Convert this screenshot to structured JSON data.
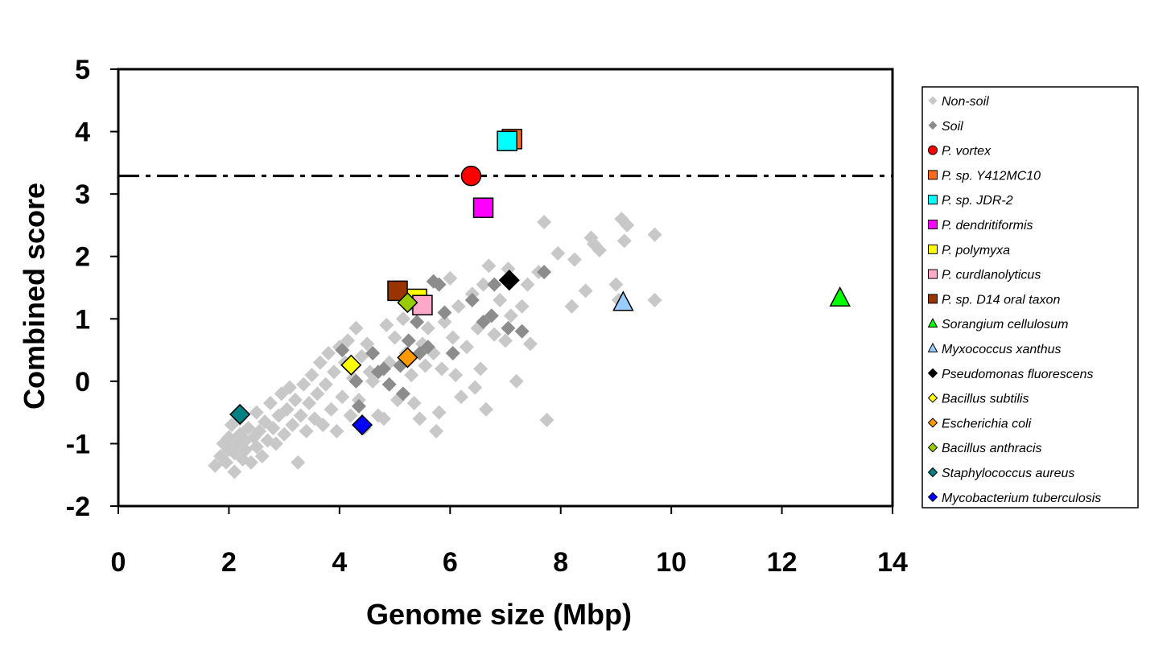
{
  "chart_data": {
    "type": "scatter",
    "title": "",
    "xlabel": "Genome size (Mbp)",
    "ylabel": "Combined score",
    "xlim": [
      0,
      14
    ],
    "ylim": [
      -2,
      5
    ],
    "xticks": [
      "0",
      "2",
      "4",
      "6",
      "8",
      "10",
      "12",
      "14"
    ],
    "yticks": [
      "-2",
      "-1",
      "0",
      "1",
      "2",
      "3",
      "4",
      "5"
    ],
    "grid": false,
    "legend_position": "right",
    "threshold": {
      "y": 3.29,
      "style": "dash-dot"
    },
    "series": [
      {
        "name": "Non-soil",
        "marker": "diamond",
        "color": "#c8c8c8",
        "points": [
          [
            1.75,
            -1.35
          ],
          [
            1.85,
            -1.2
          ],
          [
            1.9,
            -1.0
          ],
          [
            1.95,
            -1.3
          ],
          [
            2.0,
            -0.9
          ],
          [
            2.0,
            -1.1
          ],
          [
            2.05,
            -0.7
          ],
          [
            2.1,
            -1.45
          ],
          [
            2.1,
            -1.15
          ],
          [
            2.15,
            -1.0
          ],
          [
            2.2,
            -0.6
          ],
          [
            2.2,
            -0.85
          ],
          [
            2.25,
            -1.25
          ],
          [
            2.3,
            -0.95
          ],
          [
            2.3,
            -1.1
          ],
          [
            2.35,
            -0.75
          ],
          [
            2.4,
            -1.3
          ],
          [
            2.45,
            -0.9
          ],
          [
            2.5,
            -0.5
          ],
          [
            2.5,
            -1.05
          ],
          [
            2.55,
            -0.8
          ],
          [
            2.6,
            -1.2
          ],
          [
            2.65,
            -0.65
          ],
          [
            2.7,
            -0.95
          ],
          [
            2.75,
            -0.35
          ],
          [
            2.8,
            -0.75
          ],
          [
            2.85,
            -1.0
          ],
          [
            2.9,
            -0.55
          ],
          [
            2.95,
            -0.2
          ],
          [
            3.0,
            -0.85
          ],
          [
            3.05,
            -0.45
          ],
          [
            3.1,
            -0.1
          ],
          [
            3.15,
            -0.7
          ],
          [
            3.2,
            -0.3
          ],
          [
            3.25,
            -1.3
          ],
          [
            3.3,
            -0.55
          ],
          [
            3.35,
            -0.05
          ],
          [
            3.4,
            -0.8
          ],
          [
            3.45,
            -0.35
          ],
          [
            3.5,
            0.1
          ],
          [
            3.55,
            -0.6
          ],
          [
            3.6,
            -0.2
          ],
          [
            3.65,
            0.3
          ],
          [
            3.7,
            -0.7
          ],
          [
            3.75,
            -0.05
          ],
          [
            3.8,
            0.45
          ],
          [
            3.85,
            -0.45
          ],
          [
            3.9,
            0.15
          ],
          [
            3.95,
            -0.8
          ],
          [
            4.0,
            0.55
          ],
          [
            4.05,
            -0.25
          ],
          [
            4.1,
            0.3
          ],
          [
            4.15,
            0.65
          ],
          [
            4.2,
            -0.55
          ],
          [
            4.25,
            0.05
          ],
          [
            4.3,
            0.85
          ],
          [
            4.35,
            -0.3
          ],
          [
            4.4,
            0.4
          ],
          [
            4.45,
            -0.75
          ],
          [
            4.5,
            0.6
          ],
          [
            4.55,
            0.15
          ],
          [
            4.6,
            0.0
          ],
          [
            4.7,
            -0.55
          ],
          [
            4.8,
            -0.6
          ],
          [
            4.85,
            0.9
          ],
          [
            4.9,
            0.3
          ],
          [
            5.0,
            0.7
          ],
          [
            5.05,
            -0.3
          ],
          [
            5.15,
            1.0
          ],
          [
            5.2,
            0.45
          ],
          [
            5.3,
            0.1
          ],
          [
            5.35,
            -0.35
          ],
          [
            5.4,
            1.15
          ],
          [
            5.45,
            -0.6
          ],
          [
            5.5,
            0.6
          ],
          [
            5.55,
            0.25
          ],
          [
            5.6,
            0.85
          ],
          [
            5.7,
            0.45
          ],
          [
            5.75,
            -0.8
          ],
          [
            5.8,
            -0.5
          ],
          [
            5.85,
            0.2
          ],
          [
            5.9,
            0.95
          ],
          [
            6.0,
            1.65
          ],
          [
            6.05,
            0.7
          ],
          [
            6.1,
            0.1
          ],
          [
            6.15,
            1.2
          ],
          [
            6.2,
            -0.25
          ],
          [
            6.3,
            0.55
          ],
          [
            6.4,
            1.4
          ],
          [
            6.45,
            -0.1
          ],
          [
            6.5,
            0.85
          ],
          [
            6.55,
            0.2
          ],
          [
            6.6,
            1.55
          ],
          [
            6.65,
            -0.45
          ],
          [
            6.7,
            1.85
          ],
          [
            6.8,
            0.75
          ],
          [
            6.9,
            1.3
          ],
          [
            7.0,
            0.65
          ],
          [
            7.05,
            1.8
          ],
          [
            7.1,
            1.05
          ],
          [
            7.2,
            0.0
          ],
          [
            7.3,
            1.2
          ],
          [
            7.4,
            1.55
          ],
          [
            7.45,
            0.6
          ],
          [
            7.6,
            1.75
          ],
          [
            7.7,
            2.55
          ],
          [
            7.75,
            -0.62
          ],
          [
            7.95,
            2.05
          ],
          [
            8.2,
            1.2
          ],
          [
            8.25,
            1.95
          ],
          [
            8.45,
            1.45
          ],
          [
            8.55,
            2.3
          ],
          [
            8.6,
            2.2
          ],
          [
            8.7,
            2.1
          ],
          [
            9.0,
            1.55
          ],
          [
            9.05,
            1.3
          ],
          [
            9.1,
            2.6
          ],
          [
            9.15,
            2.25
          ],
          [
            9.2,
            2.5
          ],
          [
            9.7,
            2.35
          ],
          [
            9.7,
            1.3
          ]
        ]
      },
      {
        "name": "Soil",
        "marker": "diamond",
        "color": "#8c8c8c",
        "points": [
          [
            4.05,
            0.5
          ],
          [
            4.3,
            0.0
          ],
          [
            4.35,
            -0.4
          ],
          [
            4.6,
            0.45
          ],
          [
            4.7,
            0.15
          ],
          [
            4.8,
            0.2
          ],
          [
            4.9,
            -0.05
          ],
          [
            5.0,
            1.45
          ],
          [
            5.1,
            0.25
          ],
          [
            5.15,
            -0.2
          ],
          [
            5.25,
            0.65
          ],
          [
            5.4,
            0.95
          ],
          [
            5.45,
            0.45
          ],
          [
            5.5,
            1.2
          ],
          [
            5.6,
            0.55
          ],
          [
            5.7,
            1.6
          ],
          [
            5.8,
            1.55
          ],
          [
            5.9,
            1.1
          ],
          [
            6.05,
            0.45
          ],
          [
            6.4,
            1.3
          ],
          [
            6.6,
            0.95
          ],
          [
            6.75,
            1.05
          ],
          [
            6.8,
            1.55
          ],
          [
            7.05,
            0.85
          ],
          [
            7.3,
            0.8
          ],
          [
            7.7,
            1.75
          ]
        ]
      },
      {
        "name": "P. vortex",
        "marker": "circle",
        "color": "#ff0000",
        "points": [
          [
            6.38,
            3.29
          ]
        ]
      },
      {
        "name": "P. sp. Y412MC10",
        "marker": "square",
        "color": "#ff6a1a",
        "points": [
          [
            7.12,
            3.88
          ]
        ]
      },
      {
        "name": "P. sp. JDR-2",
        "marker": "square",
        "color": "#00ffff",
        "points": [
          [
            7.03,
            3.85
          ]
        ]
      },
      {
        "name": "P. dendritiformis",
        "marker": "square",
        "color": "#ff00ff",
        "points": [
          [
            6.6,
            2.78
          ]
        ]
      },
      {
        "name": "P. polymyxa",
        "marker": "square",
        "color": "#ffff00",
        "points": [
          [
            5.4,
            1.32
          ]
        ]
      },
      {
        "name": "P. curdlanolyticus",
        "marker": "square",
        "color": "#ffa8c8",
        "points": [
          [
            5.5,
            1.22
          ]
        ]
      },
      {
        "name": "P. sp. D14 oral taxon",
        "marker": "square",
        "color": "#993300",
        "points": [
          [
            5.05,
            1.45
          ]
        ]
      },
      {
        "name": "Sorangium cellulosum",
        "marker": "triangle",
        "color": "#00ff00",
        "points": [
          [
            13.05,
            1.33
          ]
        ]
      },
      {
        "name": "Myxococcus xanthus",
        "marker": "triangle",
        "color": "#99ccff",
        "points": [
          [
            9.13,
            1.26
          ]
        ]
      },
      {
        "name": "Pseudomonas fluorescens",
        "marker": "diamond",
        "color": "#000000",
        "points": [
          [
            7.07,
            1.62
          ]
        ]
      },
      {
        "name": "Bacillus subtilis",
        "marker": "diamond",
        "color": "#ffff00",
        "points": [
          [
            4.21,
            0.26
          ]
        ]
      },
      {
        "name": "Escherichia coli",
        "marker": "diamond",
        "color": "#ff9900",
        "points": [
          [
            5.23,
            0.38
          ]
        ]
      },
      {
        "name": "Bacillus anthracis",
        "marker": "diamond",
        "color": "#99cc00",
        "points": [
          [
            5.23,
            1.26
          ]
        ]
      },
      {
        "name": "Staphylococcus aureus",
        "marker": "diamond",
        "color": "#008080",
        "points": [
          [
            2.2,
            -0.53
          ]
        ]
      },
      {
        "name": "Mycobacterium tuberculosis",
        "marker": "diamond",
        "color": "#0000ff",
        "points": [
          [
            4.41,
            -0.7
          ]
        ]
      }
    ]
  }
}
